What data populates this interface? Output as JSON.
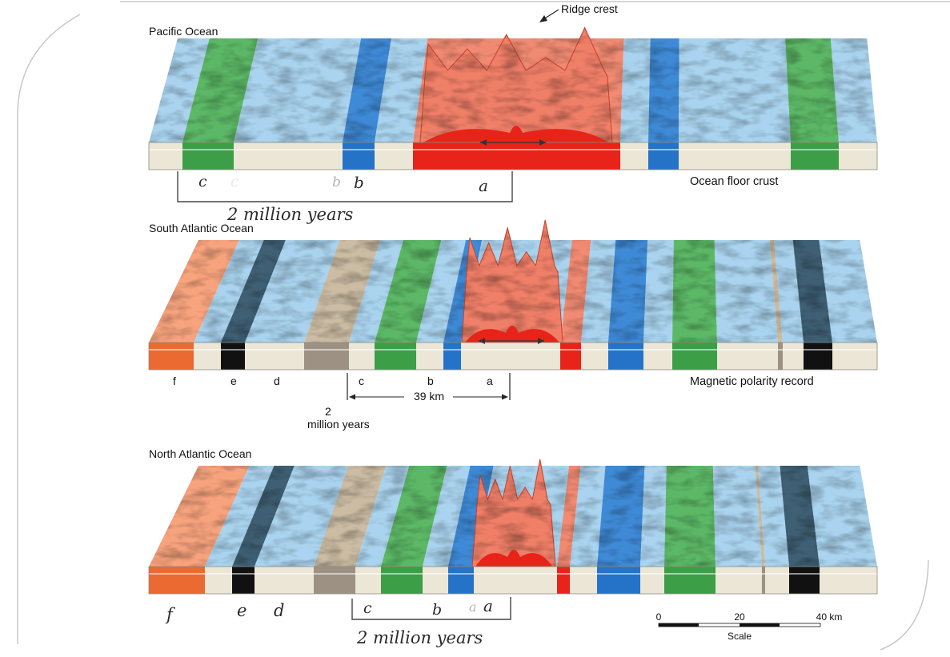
{
  "ridge_crest_label": "Ridge crest",
  "ocean_floor_label": "Ocean floor crust",
  "magnetic_record_label": "Magnetic polarity record",
  "panels": [
    {
      "title": "Pacific Ocean",
      "stripes": [
        {
          "color": "#ebe6d6"
        },
        {
          "color": "#3c9e46"
        },
        {
          "color": "#ebe6d6"
        },
        {
          "color": "#2573c8"
        },
        {
          "color": "#ebe6d6"
        },
        {
          "color": "#e8231a"
        },
        {
          "color": "#ebe6d6"
        },
        {
          "color": "#2573c8"
        },
        {
          "color": "#ebe6d6"
        },
        {
          "color": "#3c9e46"
        },
        {
          "color": "#ebe6d6"
        }
      ],
      "printed_letters": [],
      "hand_letters": [
        "c",
        "c",
        "b",
        "b",
        "a"
      ],
      "hand_note": "2 million years"
    },
    {
      "title": "South Atlantic Ocean",
      "stripes": [
        {
          "color": "#ea6a32"
        },
        {
          "color": "#ebe6d6"
        },
        {
          "color": "#111111"
        },
        {
          "color": "#ebe6d6"
        },
        {
          "color": "#9d9184"
        },
        {
          "color": "#ebe6d6"
        },
        {
          "color": "#3c9e46"
        },
        {
          "color": "#ebe6d6"
        },
        {
          "color": "#2573c8"
        },
        {
          "color": "#ebe6d6"
        },
        {
          "color": "#e8231a"
        },
        {
          "color": "#ebe6d6"
        },
        {
          "color": "#2573c8"
        },
        {
          "color": "#ebe6d6"
        },
        {
          "color": "#3c9e46"
        },
        {
          "color": "#ebe6d6"
        },
        {
          "color": "#9d9184"
        },
        {
          "color": "#ebe6d6"
        },
        {
          "color": "#111111"
        },
        {
          "color": "#ebe6d6"
        },
        {
          "color": "#ea6a32"
        }
      ],
      "printed_letters": [
        "f",
        "e",
        "d",
        "c",
        "b",
        "a"
      ],
      "distance_label": "39 km",
      "age_number": "2",
      "age_label": "million years",
      "hand_letters": [],
      "hand_note": ""
    },
    {
      "title": "North Atlantic Ocean",
      "stripes": [
        {
          "color": "#ea6a32"
        },
        {
          "color": "#ebe6d6"
        },
        {
          "color": "#111111"
        },
        {
          "color": "#ebe6d6"
        },
        {
          "color": "#9d9184"
        },
        {
          "color": "#ebe6d6"
        },
        {
          "color": "#3c9e46"
        },
        {
          "color": "#ebe6d6"
        },
        {
          "color": "#2573c8"
        },
        {
          "color": "#ebe6d6"
        },
        {
          "color": "#e8231a"
        },
        {
          "color": "#ebe6d6"
        },
        {
          "color": "#2573c8"
        },
        {
          "color": "#ebe6d6"
        },
        {
          "color": "#3c9e46"
        },
        {
          "color": "#ebe6d6"
        },
        {
          "color": "#9d9184"
        },
        {
          "color": "#ebe6d6"
        },
        {
          "color": "#111111"
        },
        {
          "color": "#ebe6d6"
        },
        {
          "color": "#ea6a32"
        }
      ],
      "printed_letters": [],
      "hand_letters": [
        "f",
        "e",
        "d",
        "c",
        "b",
        "a",
        "a"
      ],
      "hand_note": "2 million years"
    }
  ],
  "scale": {
    "ticks": [
      "0",
      "20",
      "40 km"
    ],
    "label": "Scale"
  }
}
